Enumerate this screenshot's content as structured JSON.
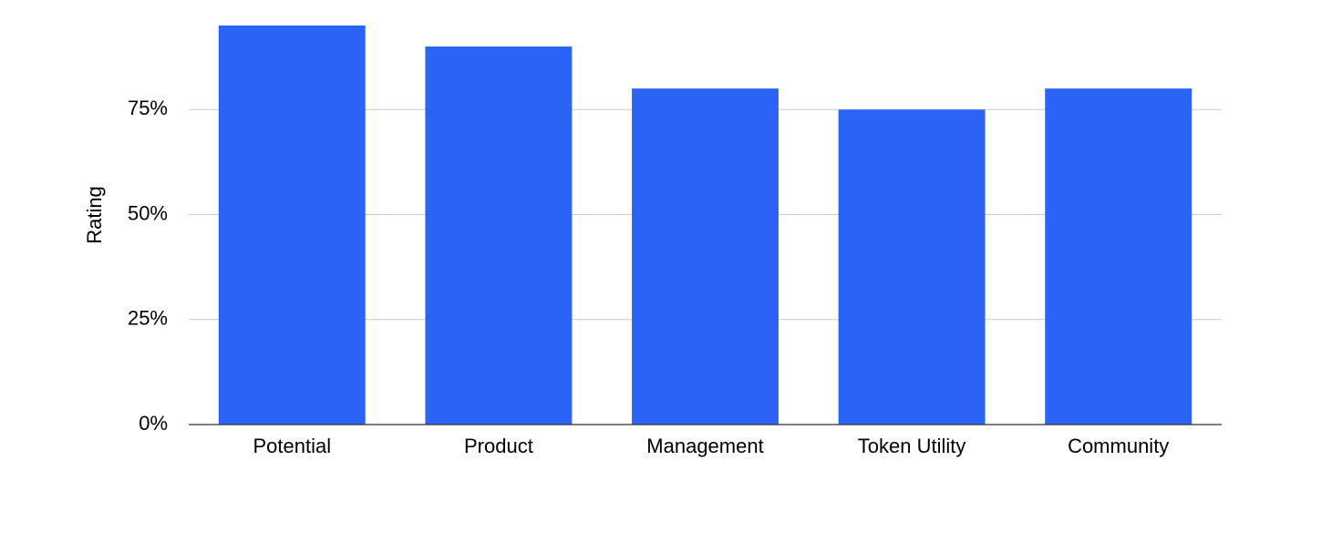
{
  "chart_data": {
    "type": "bar",
    "y_label": "Rating",
    "categories": [
      "Potential",
      "Product",
      "Management",
      "Token Utility",
      "Community"
    ],
    "values": [
      95,
      90,
      80,
      75,
      80
    ],
    "color": "#2b63f5",
    "ylim": [
      0,
      95
    ],
    "yticks": [
      {
        "value": 0,
        "label": "0%"
      },
      {
        "value": 25,
        "label": "25%"
      },
      {
        "value": 50,
        "label": "50%"
      },
      {
        "value": 75,
        "label": "75%"
      }
    ],
    "grid": true
  }
}
